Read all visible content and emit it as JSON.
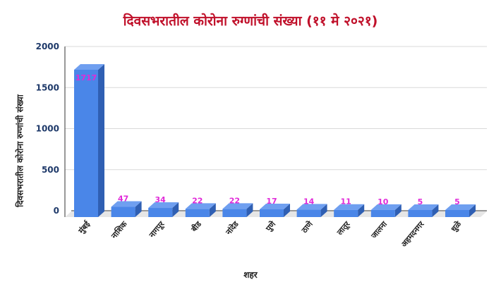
{
  "chart_data": {
    "type": "bar",
    "title": "दिवसभरातील कोरोना रुग्णांची संख्या (११ मे २०२१)",
    "xlabel": "शहर",
    "ylabel": "दिवसभरातील कोरोना रुग्णांची संख्या",
    "categories": [
      "मुंबई",
      "नाशिक",
      "नागपूर",
      "बीड",
      "नांदेड",
      "पुणे",
      "ठाणे",
      "लातूर",
      "जालना",
      "अहमदनगर",
      "धुळे"
    ],
    "values": [
      1717,
      47,
      34,
      22,
      22,
      17,
      14,
      11,
      10,
      5,
      5
    ],
    "data_labels": [
      "1717",
      "47",
      "34",
      "22",
      "22",
      "17",
      "14",
      "11",
      "10",
      "5",
      "5"
    ],
    "yticks": [
      "0",
      "500",
      "1000",
      "1500",
      "2000"
    ],
    "ylim": [
      0,
      2000
    ],
    "grid": true,
    "colors": {
      "bar_front": "#4a86e8",
      "bar_top": "#6f9ff0",
      "bar_side": "#2f5fb3",
      "data_label": "#e02ad8",
      "title": "#c0102a",
      "tick": "#1f3a6a",
      "grid": "#d9d9d9"
    }
  }
}
